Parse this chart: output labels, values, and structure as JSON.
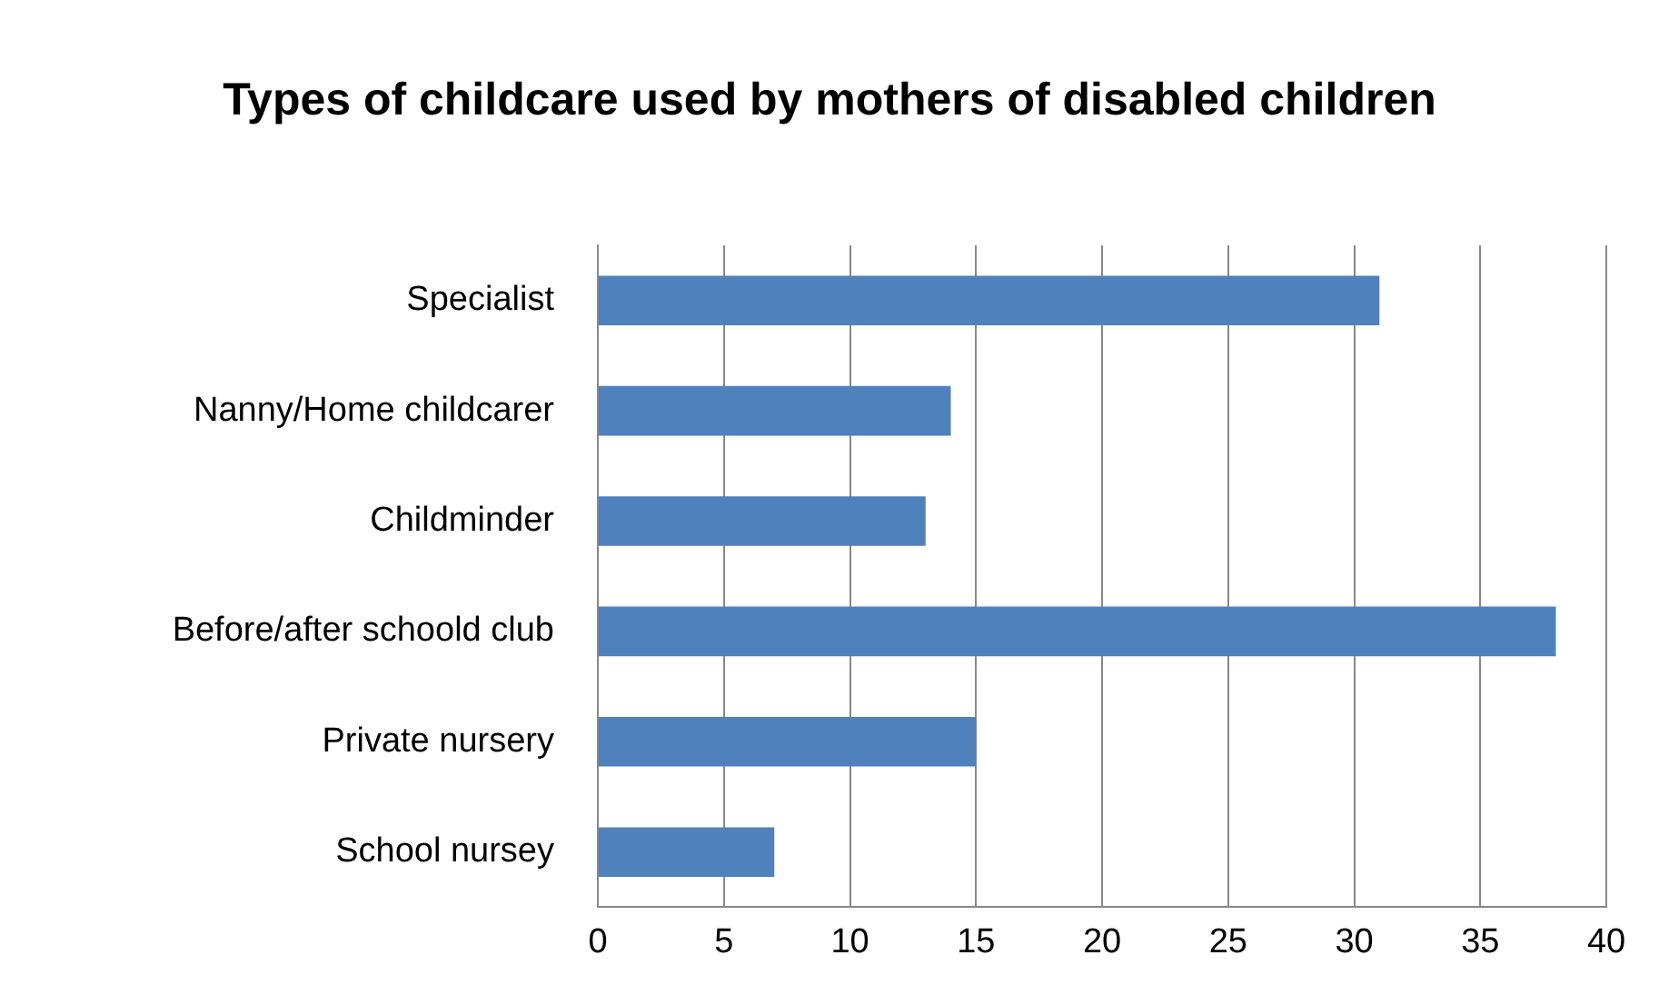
{
  "chart_data": {
    "type": "bar",
    "orientation": "horizontal",
    "title": "Types of childcare used by mothers of disabled children",
    "categories": [
      "Specialist",
      "Nanny/Home childcarer",
      "Childminder",
      "Before/after schoold club",
      "Private nursery",
      "School nursey"
    ],
    "values": [
      31,
      14,
      13,
      38,
      15,
      7
    ],
    "color": "#4f81bd",
    "xlim": [
      0,
      40
    ],
    "xticks": [
      0,
      5,
      10,
      15,
      20,
      25,
      30,
      35,
      40
    ],
    "grid": "x",
    "legend": false
  }
}
